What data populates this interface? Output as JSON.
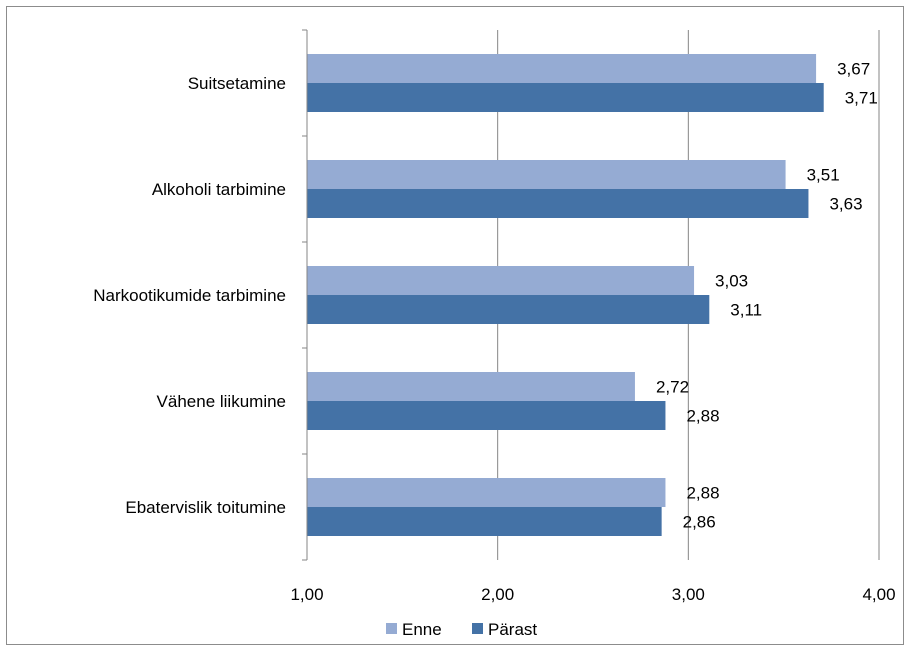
{
  "chart_data": {
    "type": "bar",
    "orientation": "horizontal",
    "categories": [
      "Suitsetamine",
      "Alkoholi tarbimine",
      "Narkootikumide tarbimine",
      "Vähene liikumine",
      "Ebatervislik toitumine"
    ],
    "series": [
      {
        "name": "Enne",
        "values": [
          3.67,
          3.51,
          3.03,
          2.72,
          2.88
        ],
        "labels": [
          "3,67",
          "3,51",
          "3,03",
          "2,72",
          "2,88"
        ],
        "color": "#95abd3"
      },
      {
        "name": "Pärast",
        "values": [
          3.71,
          3.63,
          3.11,
          2.88,
          2.86
        ],
        "labels": [
          "3,71",
          "3,63",
          "3,11",
          "2,88",
          "2,86"
        ],
        "color": "#4472a6"
      }
    ],
    "xlim": [
      1,
      4
    ],
    "xticks": [
      1,
      2,
      3,
      4
    ],
    "xtick_labels": [
      "1,00",
      "2,00",
      "3,00",
      "4,00"
    ],
    "grid": "vertical",
    "legend": "bottom"
  },
  "colors": {
    "gridline": "#868686",
    "axis": "#868686"
  }
}
